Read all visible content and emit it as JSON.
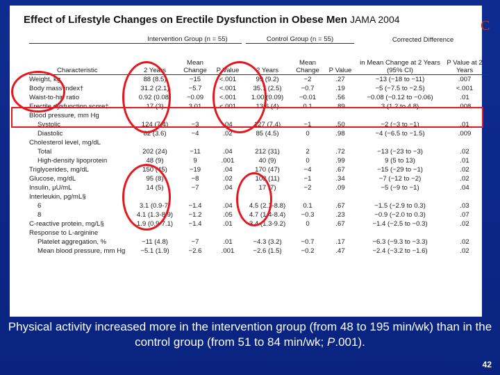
{
  "slide": {
    "title": "Effect of Lifestyle Changes on Erectile Dysfunction in Obese Men",
    "journal": "JAMA 2004",
    "corner_letter": "C",
    "caption_pre": "Physical activity increased more in the intervention group (from 48 to 195 min/wk) than in the control group (from 51 to 84 min/wk; ",
    "caption_p": "P",
    "caption_post": ".001).",
    "page_number": "42",
    "highlight_color": "#e4161e"
  },
  "table": {
    "group_headers": [
      "Intervention Group (n = 55)",
      "Control Group (n = 55)"
    ],
    "corrected_header": "Corrected Difference",
    "column_headers": [
      "Characteristic",
      "2 Years",
      "Mean Change",
      "P Value",
      "2 Years",
      "Mean Change",
      "P Value",
      "in Mean Change at 2 Years (95% CI)",
      "P Value at 2 Years"
    ],
    "rows": [
      {
        "label": "Weight, kg",
        "cells": [
          "88 (8.5)",
          "−15",
          "<.001",
          "99 (9.2)",
          "−2",
          ".27",
          "−13 (−18 to −11)",
          ".007"
        ]
      },
      {
        "label": "Body mass index†",
        "cells": [
          "31.2 (2.1)",
          "−5.7",
          "<.001",
          "35.7 (2.5)",
          "−0.7",
          ".19",
          "−5 (−7.5 to −2.5)",
          "<.001"
        ]
      },
      {
        "label": "Waist-to-hip ratio",
        "cells": [
          "0.92 (0.08)",
          "−0.09",
          "<.001",
          "1.00 (0.09)",
          "−0.01",
          ".56",
          "−0.08 (−0.12 to −0.06)",
          ".01"
        ]
      },
      {
        "label": "Erectile dysfunction score‡",
        "cells": [
          "17 (3)",
          "3.01",
          "<.001",
          "13.6 (4)",
          "0.1",
          ".89",
          "3 (1.2 to 4.8)",
          ".008"
        ]
      },
      {
        "label": "Blood pressure, mm Hg",
        "cells": [
          "",
          "",
          "",
          "",
          "",
          "",
          "",
          ""
        ]
      },
      {
        "label": "Systolic",
        "indent": true,
        "cells": [
          "124 (7.4)",
          "−3",
          ".04",
          "127 (7.4)",
          "−1",
          ".50",
          "−2 (−3 to −1)",
          ".01"
        ]
      },
      {
        "label": "Diastolic",
        "indent": true,
        "cells": [
          "82 (3.6)",
          "−4",
          ".02",
          "85 (4.5)",
          "0",
          ".98",
          "−4 (−6.5 to −1.5)",
          ".009"
        ]
      },
      {
        "label": "Cholesterol level, mg/dL",
        "cells": [
          "",
          "",
          "",
          "",
          "",
          "",
          "",
          ""
        ]
      },
      {
        "label": "Total",
        "indent": true,
        "cells": [
          "202 (24)",
          "−11",
          ".04",
          "212 (31)",
          "2",
          ".72",
          "−13 (−23 to −3)",
          ".02"
        ]
      },
      {
        "label": "High-density lipoprotein",
        "indent": true,
        "cells": [
          "48 (9)",
          "9",
          ".001",
          "40 (9)",
          "0",
          ".99",
          "9 (5 to 13)",
          ".01"
        ]
      },
      {
        "label": "Triglycerides, mg/dL",
        "cells": [
          "150 (45)",
          "−19",
          ".04",
          "170 (47)",
          "−4",
          ".67",
          "−15 (−29 to −1)",
          ".02"
        ]
      },
      {
        "label": "Glucose, mg/dL",
        "cells": [
          "95 (8)",
          "−8",
          ".02",
          "103 (11)",
          "−1",
          ".34",
          "−7 (−12 to −2)",
          ".02"
        ]
      },
      {
        "label": "Insulin, μU/mL",
        "cells": [
          "14 (5)",
          "−7",
          ".04",
          "17 (7)",
          "−2",
          ".09",
          "−5 (−9 to −1)",
          ".04"
        ]
      },
      {
        "label": "Interleukin, pg/mL§",
        "cells": [
          "",
          "",
          "",
          "",
          "",
          "",
          "",
          ""
        ]
      },
      {
        "label": "6",
        "indent": true,
        "cells": [
          "3.1 (0.9-7)",
          "−1.4",
          ".04",
          "4.5 (2.1-8.8)",
          "0.1",
          ".67",
          "−1.5 (−2.9 to 0.3)",
          ".03"
        ]
      },
      {
        "label": "8",
        "indent": true,
        "cells": [
          "4.1 (1.3-8.9)",
          "−1.2",
          ".05",
          "4.7 (1.4-8.4)",
          "−0.3",
          ".23",
          "−0.9 (−2.0 to 0.3)",
          ".07"
        ]
      },
      {
        "label": "C-reactive protein, mg/L§",
        "cells": [
          "1.9 (0.9-7.1)",
          "−1.4",
          ".01",
          "3.4 (1.3-9.2)",
          "0",
          ".67",
          "−1.4 (−2.5 to −0.3)",
          ".02"
        ]
      },
      {
        "label": "Response to L-arginine",
        "cells": [
          "",
          "",
          "",
          "",
          "",
          "",
          "",
          ""
        ]
      },
      {
        "label": "Platelet aggregation, %",
        "indent": true,
        "cells": [
          "−11 (4.8)",
          "−7",
          ".01",
          "−4.3 (3.2)",
          "−0.7",
          ".17",
          "−6.3 (−9.3 to −3.3)",
          ".02"
        ]
      },
      {
        "label": "Mean blood pressure, mm Hg",
        "indent": true,
        "cells": [
          "−5.1 (1.9)",
          "−2.6",
          ".001",
          "−2.6 (1.5)",
          "−0.2",
          ".47",
          "−2.4 (−3.2 to −1.6)",
          ".02"
        ]
      }
    ]
  }
}
